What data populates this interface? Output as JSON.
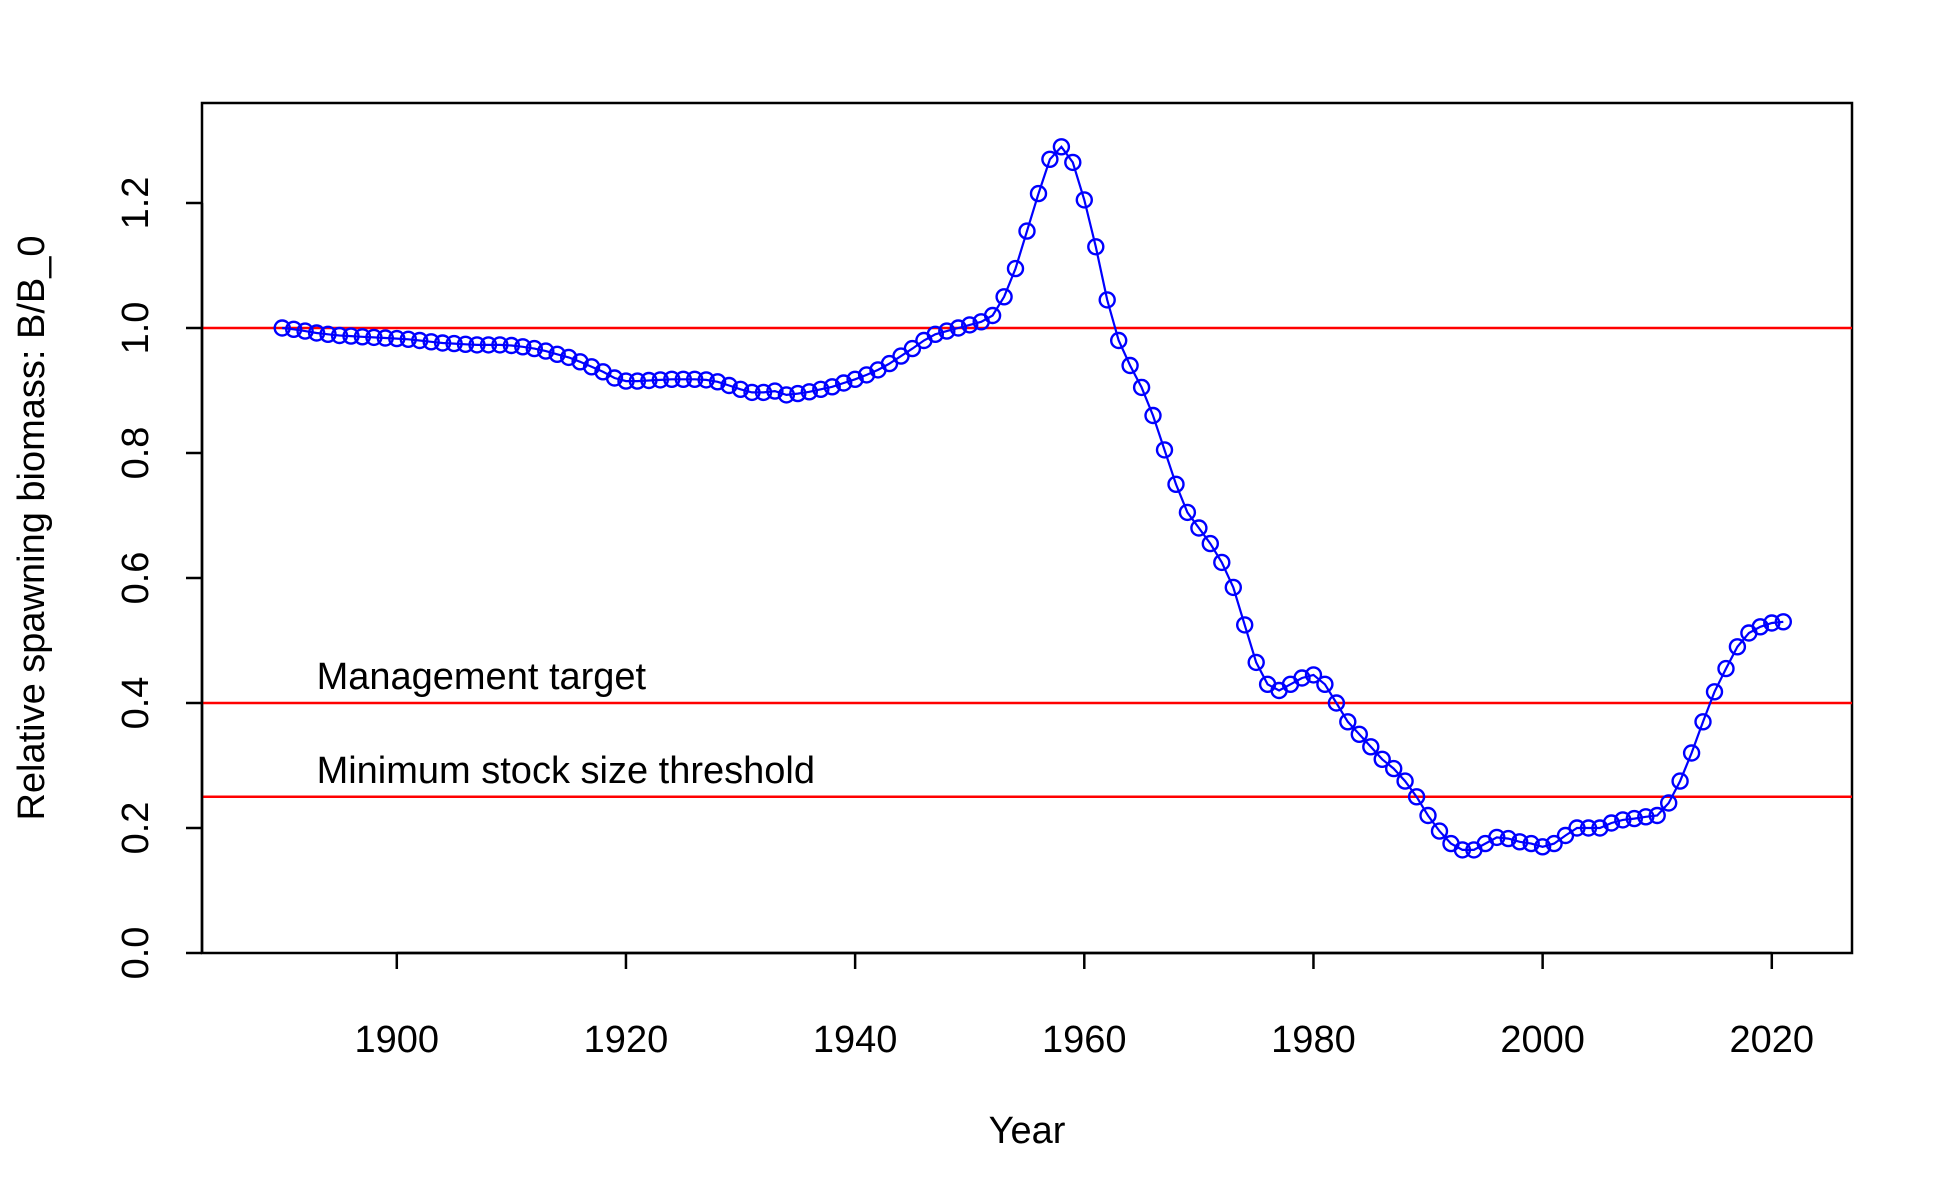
{
  "chart_data": {
    "type": "line",
    "title": "",
    "xlabel": "Year",
    "ylabel": "Relative spawning biomass: B/B_0",
    "xlim": [
      1883,
      2027
    ],
    "ylim": [
      0,
      1.36
    ],
    "x_ticks": [
      1900,
      1920,
      1940,
      1960,
      1980,
      2000,
      2020
    ],
    "y_ticks": [
      0.0,
      0.2,
      0.4,
      0.6,
      0.8,
      1.0,
      1.2
    ],
    "x_tick_labels": [
      "1900",
      "1920",
      "1940",
      "1960",
      "1980",
      "2000",
      "2020"
    ],
    "y_tick_labels": [
      "0.0",
      "0.2",
      "0.4",
      "0.6",
      "0.8",
      "1.0",
      "1.2"
    ],
    "grid": false,
    "series_color": "#0000ff",
    "reference_color": "#ff0000",
    "reference_lines": [
      {
        "y": 1.0,
        "label": ""
      },
      {
        "y": 0.4,
        "label": "Management target"
      },
      {
        "y": 0.25,
        "label": "Minimum stock size threshold"
      }
    ],
    "series": [
      {
        "x": [
          1890,
          1891,
          1892,
          1893,
          1894,
          1895,
          1896,
          1897,
          1898,
          1899,
          1900,
          1901,
          1902,
          1903,
          1904,
          1905,
          1906,
          1907,
          1908,
          1909,
          1910,
          1911,
          1912,
          1913,
          1914,
          1915,
          1916,
          1917,
          1918,
          1919,
          1920,
          1921,
          1922,
          1923,
          1924,
          1925,
          1926,
          1927,
          1928,
          1929,
          1930,
          1931,
          1932,
          1933,
          1934,
          1935,
          1936,
          1937,
          1938,
          1939,
          1940,
          1941,
          1942,
          1943,
          1944,
          1945,
          1946,
          1947,
          1948,
          1949,
          1950,
          1951,
          1952,
          1953,
          1954,
          1955,
          1956,
          1957,
          1958,
          1959,
          1960,
          1961,
          1962,
          1963,
          1964,
          1965,
          1966,
          1967,
          1968,
          1969,
          1970,
          1971,
          1972,
          1973,
          1974,
          1975,
          1976,
          1977,
          1978,
          1979,
          1980,
          1981,
          1982,
          1983,
          1984,
          1985,
          1986,
          1987,
          1988,
          1989,
          1990,
          1991,
          1992,
          1993,
          1994,
          1995,
          1996,
          1997,
          1998,
          1999,
          2000,
          2001,
          2002,
          2003,
          2004,
          2005,
          2006,
          2007,
          2008,
          2009,
          2010,
          2011,
          2012,
          2013,
          2014,
          2015,
          2016,
          2017,
          2018,
          2019,
          2020,
          2021
        ],
        "values": [
          1.0,
          0.998,
          0.995,
          0.992,
          0.99,
          0.988,
          0.987,
          0.986,
          0.985,
          0.984,
          0.983,
          0.982,
          0.98,
          0.978,
          0.976,
          0.975,
          0.974,
          0.973,
          0.973,
          0.973,
          0.972,
          0.97,
          0.967,
          0.963,
          0.958,
          0.953,
          0.946,
          0.938,
          0.93,
          0.92,
          0.915,
          0.915,
          0.916,
          0.917,
          0.918,
          0.918,
          0.918,
          0.917,
          0.914,
          0.908,
          0.902,
          0.897,
          0.897,
          0.899,
          0.893,
          0.895,
          0.898,
          0.902,
          0.906,
          0.912,
          0.918,
          0.925,
          0.933,
          0.943,
          0.955,
          0.967,
          0.98,
          0.99,
          0.995,
          1.0,
          1.005,
          1.01,
          1.02,
          1.05,
          1.095,
          1.155,
          1.215,
          1.27,
          1.29,
          1.265,
          1.205,
          1.13,
          1.045,
          0.98,
          0.94,
          0.905,
          0.86,
          0.805,
          0.75,
          0.705,
          0.68,
          0.655,
          0.625,
          0.585,
          0.525,
          0.465,
          0.43,
          0.42,
          0.43,
          0.44,
          0.445,
          0.43,
          0.4,
          0.37,
          0.35,
          0.33,
          0.31,
          0.295,
          0.275,
          0.25,
          0.22,
          0.195,
          0.175,
          0.165,
          0.165,
          0.175,
          0.185,
          0.183,
          0.178,
          0.175,
          0.17,
          0.175,
          0.188,
          0.2,
          0.2,
          0.2,
          0.208,
          0.213,
          0.215,
          0.218,
          0.22,
          0.24,
          0.275,
          0.32,
          0.37,
          0.418,
          0.455,
          0.49,
          0.512,
          0.522,
          0.528,
          0.53
        ]
      }
    ]
  }
}
